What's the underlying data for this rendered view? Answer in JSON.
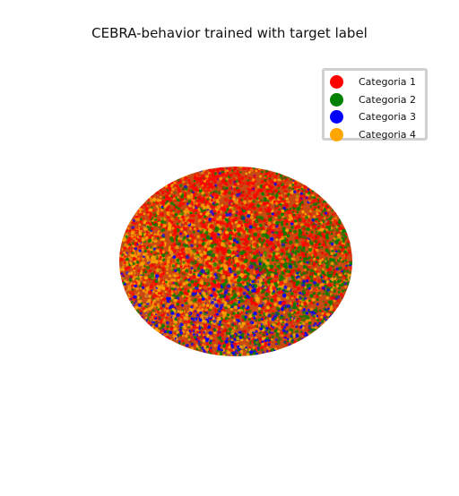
{
  "chart_data": {
    "type": "scatter",
    "title": "CEBRA-behavior trained with target label",
    "projection": "3d-sphere",
    "axes_visible": false,
    "grid": false,
    "legend_position": "top-right",
    "series": [
      {
        "name": "Categoria 1",
        "color": "#ff0000",
        "weight": 0.36,
        "region": "upper"
      },
      {
        "name": "Categoria 2",
        "color": "#008000",
        "weight": 0.22,
        "region": "right"
      },
      {
        "name": "Categoria 3",
        "color": "#0000ff",
        "weight": 0.14,
        "region": "lower"
      },
      {
        "name": "Categoria 4",
        "color": "#ffa500",
        "weight": 0.28,
        "region": "left"
      }
    ]
  }
}
